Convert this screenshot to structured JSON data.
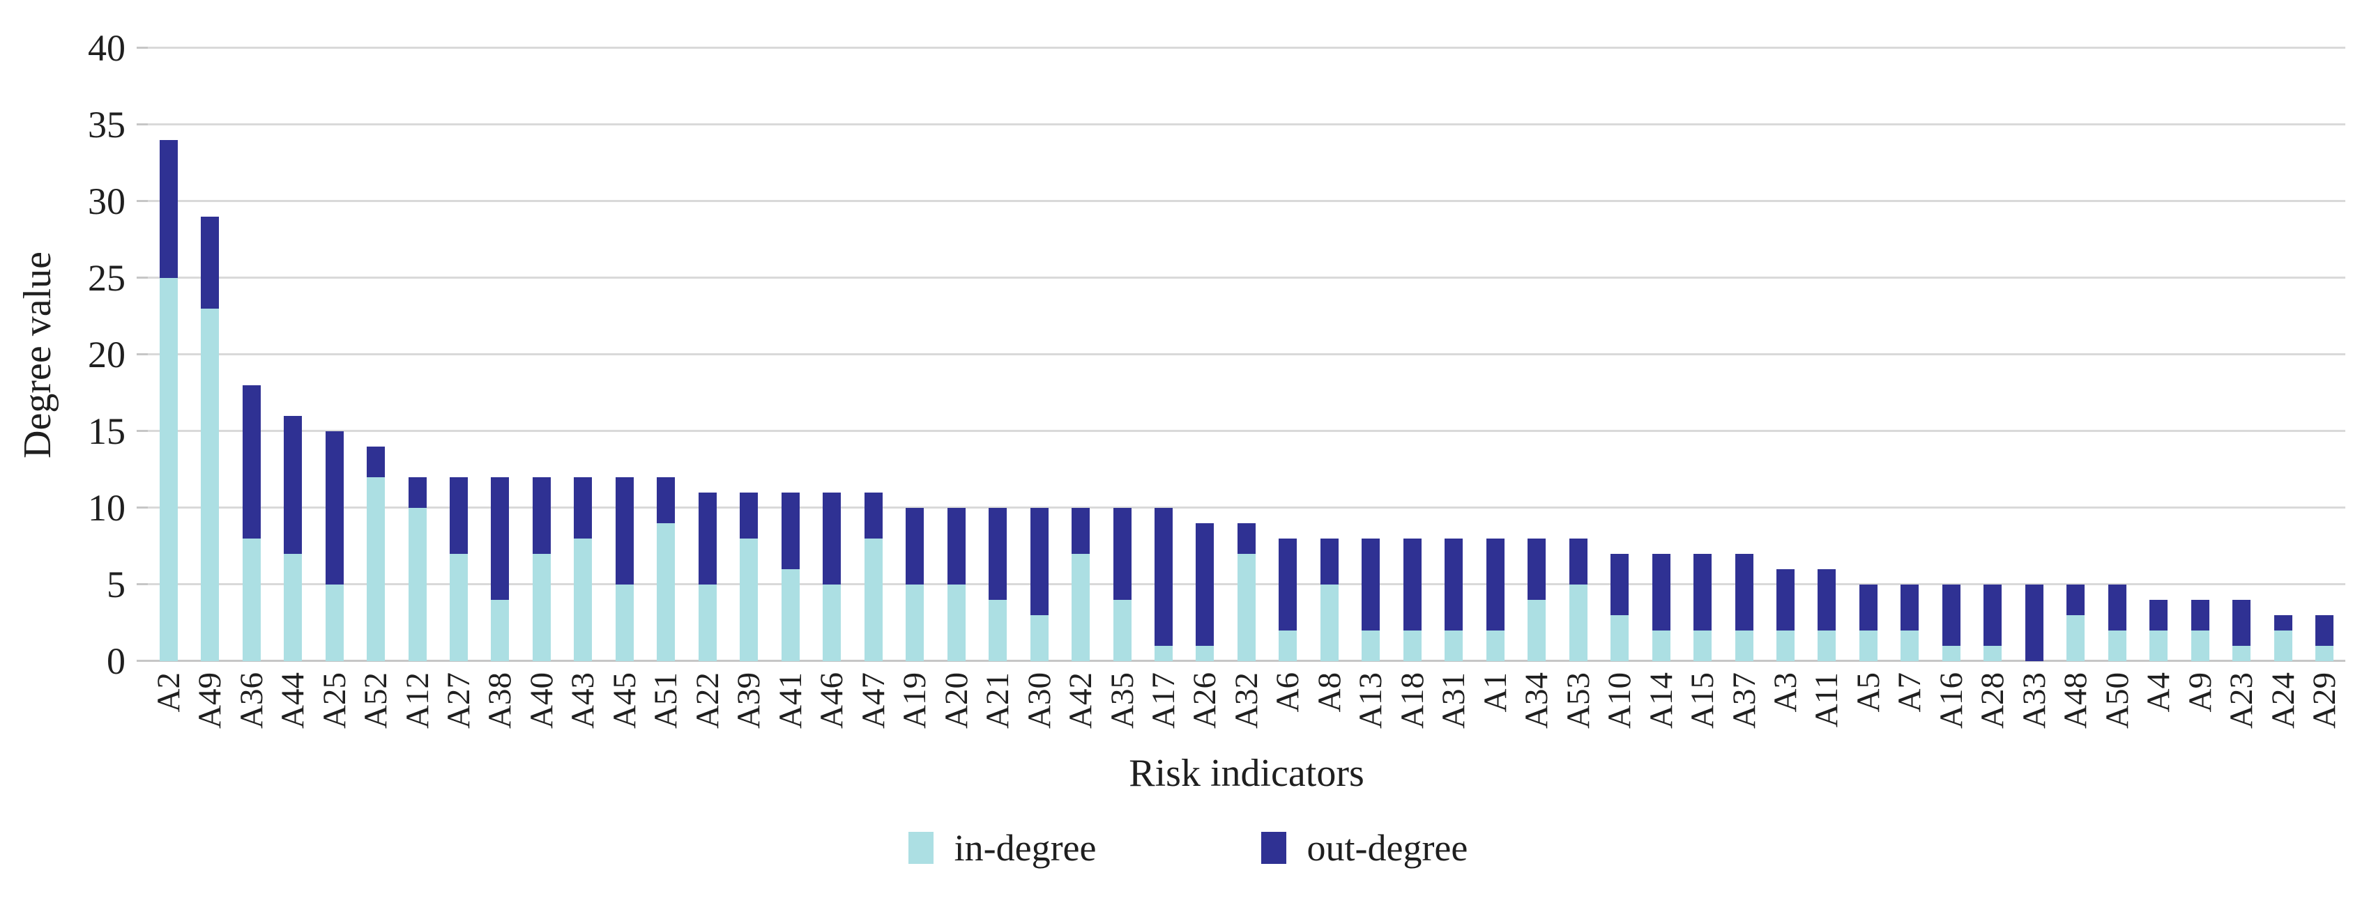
{
  "figure": {
    "background": "#ffffff",
    "text_color": "#1f1f1f"
  },
  "chart_data": {
    "type": "bar",
    "stacked": true,
    "title": "",
    "xlabel": "Risk indicators",
    "ylabel": "Degree value",
    "ylim": [
      0,
      40
    ],
    "ytick_step": 5,
    "yticks": [
      0,
      5,
      10,
      15,
      20,
      25,
      30,
      35,
      40
    ],
    "grid": "horizontal",
    "gridline_color": "#d9d9d9",
    "axis_line_color": "#c6c6c6",
    "legend_position": "bottom-center",
    "categories": [
      "A2",
      "A49",
      "A36",
      "A44",
      "A25",
      "A52",
      "A12",
      "A27",
      "A38",
      "A40",
      "A43",
      "A45",
      "A51",
      "A22",
      "A39",
      "A41",
      "A46",
      "A47",
      "A19",
      "A20",
      "A21",
      "A30",
      "A42",
      "A35",
      "A17",
      "A26",
      "A32",
      "A6",
      "A8",
      "A13",
      "A18",
      "A31",
      "A1",
      "A34",
      "A53",
      "A10",
      "A14",
      "A15",
      "A37",
      "A3",
      "A11",
      "A5",
      "A7",
      "A16",
      "A28",
      "A33",
      "A48",
      "A50",
      "A4",
      "A9",
      "A23",
      "A24",
      "A29"
    ],
    "series": [
      {
        "name": "in-degree",
        "color": "#acdfe3",
        "values": [
          25,
          23,
          8,
          7,
          5,
          12,
          10,
          7,
          4,
          7,
          8,
          5,
          9,
          5,
          8,
          6,
          5,
          8,
          5,
          5,
          4,
          3,
          7,
          4,
          1,
          1,
          7,
          2,
          5,
          2,
          2,
          2,
          2,
          4,
          5,
          3,
          2,
          2,
          2,
          2,
          2,
          2,
          2,
          1,
          1,
          0,
          3,
          2,
          2,
          2,
          1,
          2,
          1
        ]
      },
      {
        "name": "out-degree",
        "color": "#2f3193",
        "values": [
          9,
          6,
          10,
          9,
          10,
          2,
          2,
          5,
          8,
          5,
          4,
          7,
          3,
          6,
          3,
          5,
          6,
          3,
          5,
          5,
          6,
          7,
          3,
          6,
          9,
          8,
          2,
          6,
          3,
          6,
          6,
          6,
          6,
          4,
          3,
          4,
          5,
          5,
          5,
          4,
          4,
          3,
          3,
          4,
          4,
          5,
          2,
          3,
          2,
          2,
          3,
          1,
          2
        ]
      }
    ]
  },
  "legend": {
    "items": [
      {
        "label": "in-degree",
        "color": "#acdfe3"
      },
      {
        "label": "out-degree",
        "color": "#2f3193"
      }
    ]
  }
}
